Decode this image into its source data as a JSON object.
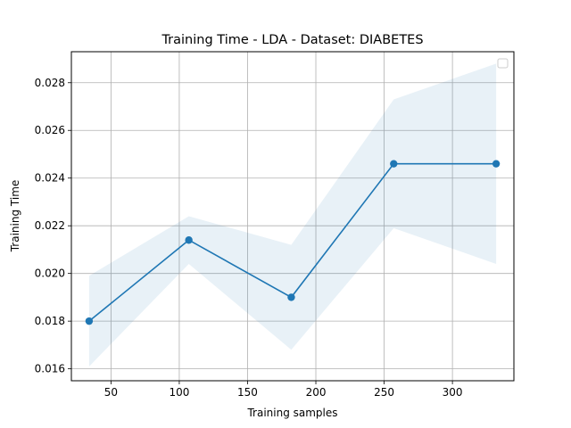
{
  "chart_data": {
    "type": "line",
    "title": "Training Time - LDA - Dataset: DIABETES",
    "xlabel": "Training samples",
    "ylabel": "Training Time",
    "x": [
      34,
      107,
      182,
      257,
      332
    ],
    "series": [
      {
        "values": [
          0.018,
          0.0214,
          0.019,
          0.0246,
          0.0246
        ],
        "band_lower": [
          0.0161,
          0.0204,
          0.0168,
          0.0219,
          0.0204
        ],
        "band_upper": [
          0.0199,
          0.0224,
          0.0212,
          0.0273,
          0.0288
        ],
        "color": "#1f77b4",
        "band_color": "#1f77b4"
      }
    ],
    "xlim": [
      21,
      345
    ],
    "ylim": [
      0.0155,
      0.0293
    ],
    "xticks": [
      50,
      100,
      150,
      200,
      250,
      300
    ],
    "yticks": [
      0.016,
      0.018,
      0.02,
      0.022,
      0.024,
      0.026,
      0.028
    ],
    "xtick_labels": [
      "50",
      "100",
      "150",
      "200",
      "250",
      "300"
    ],
    "ytick_labels": [
      "0.016",
      "0.018",
      "0.020",
      "0.022",
      "0.024",
      "0.026",
      "0.028"
    ],
    "grid": true,
    "legend": "top-right, empty"
  }
}
